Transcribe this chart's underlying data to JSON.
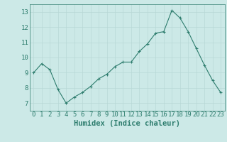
{
  "x": [
    0,
    1,
    2,
    3,
    4,
    5,
    6,
    7,
    8,
    9,
    10,
    11,
    12,
    13,
    14,
    15,
    16,
    17,
    18,
    19,
    20,
    21,
    22,
    23
  ],
  "y": [
    9.0,
    9.6,
    9.2,
    7.9,
    7.0,
    7.4,
    7.7,
    8.1,
    8.6,
    8.9,
    9.4,
    9.7,
    9.7,
    10.4,
    10.9,
    11.6,
    11.7,
    13.1,
    12.6,
    11.7,
    10.6,
    9.5,
    8.5,
    7.7
  ],
  "xlabel": "Humidex (Indice chaleur)",
  "ylim": [
    6.5,
    13.5
  ],
  "xlim": [
    -0.5,
    23.5
  ],
  "yticks": [
    7,
    8,
    9,
    10,
    11,
    12,
    13
  ],
  "xticks": [
    0,
    1,
    2,
    3,
    4,
    5,
    6,
    7,
    8,
    9,
    10,
    11,
    12,
    13,
    14,
    15,
    16,
    17,
    18,
    19,
    20,
    21,
    22,
    23
  ],
  "line_color": "#2e7d6e",
  "marker_color": "#2e7d6e",
  "bg_color": "#cce9e7",
  "grid_color": "#b8d8d6",
  "tick_color": "#2e7d6e",
  "label_color": "#2e7d6e",
  "font_size_tick": 6.5,
  "font_size_label": 7.5
}
